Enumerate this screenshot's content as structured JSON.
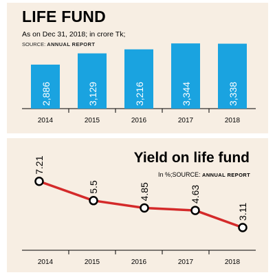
{
  "colors": {
    "panel_bg": "#f7eee3",
    "bar_fill": "#1aa3e0",
    "line_stroke": "#d42a2a",
    "marker_fill": "#ffffff",
    "marker_stroke": "#000000"
  },
  "top": {
    "title": "LIFE FUND",
    "subtitle": "As on Dec 31, 2018; in crore Tk;",
    "source_prefix": "SOURCE: ",
    "source_name": "ANNUAL REPORT"
  },
  "bottom": {
    "title": "Yield on life fund",
    "subtitle": "In %;",
    "source_prefix": "SOURCE: ",
    "source_name": "ANNUAL REPORT"
  },
  "chart_data": [
    {
      "type": "bar",
      "title": "LIFE FUND",
      "subtitle": "As on Dec 31, 2018; in crore Tk;",
      "categories": [
        "2014",
        "2015",
        "2016",
        "2017",
        "2018"
      ],
      "values": [
        2886,
        3129,
        3216,
        3344,
        3338
      ],
      "value_labels": [
        "2,886",
        "3,129",
        "3,216",
        "3,344",
        "3,338"
      ],
      "xlabel": "",
      "ylabel": "",
      "grid": false,
      "legend": "none"
    },
    {
      "type": "line",
      "title": "Yield on life fund",
      "subtitle": "In %;",
      "x": [
        "2014",
        "2015",
        "2016",
        "2017",
        "2018"
      ],
      "values": [
        7.21,
        5.5,
        4.85,
        4.63,
        3.11
      ],
      "value_labels": [
        "7.21",
        "5.5",
        "4.85",
        "4.63",
        "3.11"
      ],
      "xlabel": "",
      "ylabel": "",
      "grid": false,
      "legend": "none"
    }
  ]
}
